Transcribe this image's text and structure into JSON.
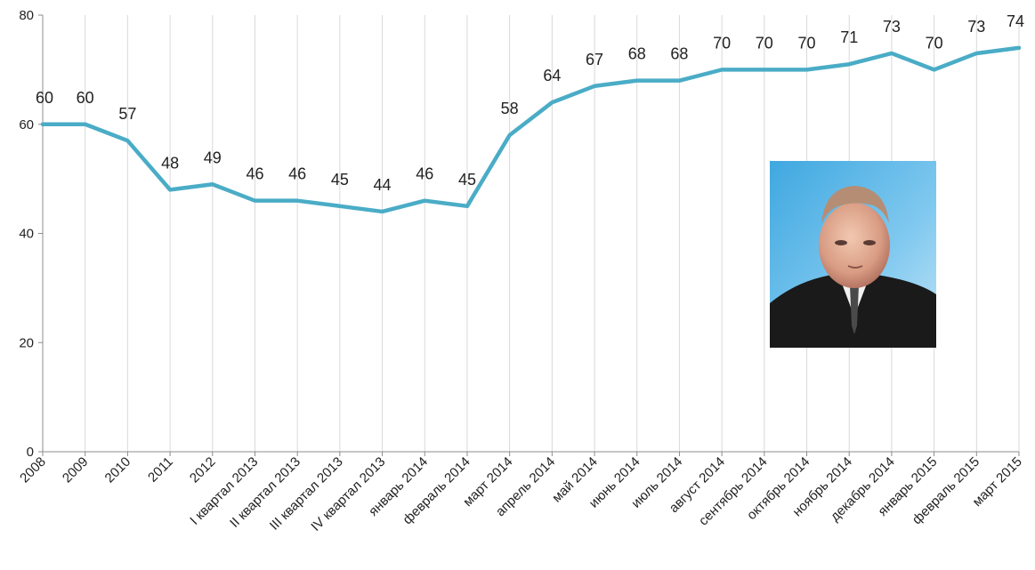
{
  "chart_data": {
    "type": "line",
    "title": "",
    "xlabel": "",
    "ylabel": "",
    "ylim": [
      0,
      80
    ],
    "yticks": [
      0,
      20,
      40,
      60,
      80
    ],
    "grid": "vertical",
    "line_color": "#4AACC6",
    "categories": [
      "2008",
      "2009",
      "2010",
      "2011",
      "2012",
      "I квартал 2013",
      "II квартал 2013",
      "III квартал 2013",
      "IV квартал 2013",
      "январь 2014",
      "февраль 2014",
      "март 2014",
      "апрель 2014",
      "май 2014",
      "июнь 2014",
      "июль 2014",
      "август 2014",
      "сентябрь 2014",
      "октябрь 2014",
      "ноябрь 2014",
      "декабрь 2014",
      "январь 2015",
      "февраль 2015",
      "март 2015"
    ],
    "series": [
      {
        "values": [
          60,
          60,
          57,
          48,
          49,
          46,
          46,
          45,
          44,
          46,
          45,
          58,
          64,
          67,
          68,
          68,
          70,
          70,
          70,
          71,
          73,
          70,
          73,
          74
        ]
      }
    ]
  },
  "photo": {
    "icon": "portrait-photo"
  }
}
